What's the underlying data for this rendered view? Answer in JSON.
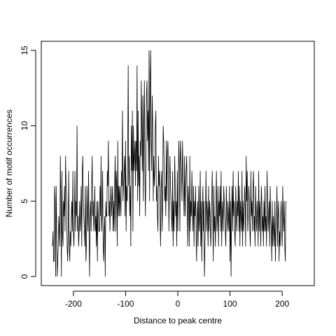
{
  "chart_data": {
    "type": "line",
    "title": "",
    "xlabel": "Distance to peak centre",
    "ylabel": "Number of motif occurrences",
    "xlim": [
      -250,
      250
    ],
    "ylim": [
      0,
      15
    ],
    "xticks": [
      -200,
      -100,
      0,
      100,
      200
    ],
    "yticks": [
      0,
      5,
      10,
      15
    ],
    "x_start": -240,
    "x_step": 1,
    "grid": false,
    "legend": "none",
    "line_color": "#000000",
    "series": [
      {
        "values": [
          2,
          3,
          1,
          1,
          6,
          5,
          0,
          6,
          3,
          0,
          1,
          2,
          4,
          3,
          2,
          8,
          5,
          0,
          7,
          3,
          2,
          5,
          4,
          6,
          3,
          8,
          6,
          5,
          2,
          1,
          3,
          7,
          2,
          1,
          3,
          2,
          4,
          5,
          3,
          7,
          3,
          2,
          4,
          7,
          3,
          5,
          4,
          10,
          3,
          4,
          2,
          3,
          5,
          3,
          4,
          6,
          2,
          7,
          8,
          5,
          4,
          3,
          2,
          6,
          1,
          2,
          6,
          4,
          3,
          7,
          3,
          0,
          4,
          5,
          3,
          6,
          8,
          4,
          5,
          3,
          4,
          6,
          3,
          4,
          2,
          5,
          1,
          5,
          4,
          3,
          3,
          6,
          4,
          8,
          3,
          4,
          7,
          2,
          1,
          3,
          4,
          0,
          5,
          4,
          4,
          7,
          6,
          9,
          4,
          5,
          3,
          5,
          6,
          4,
          5,
          6,
          3,
          5,
          3,
          6,
          8,
          3,
          7,
          6,
          2,
          9,
          4,
          6,
          4,
          6,
          5,
          4,
          7,
          6,
          11,
          5,
          6,
          7,
          8,
          4,
          9,
          3,
          6,
          5,
          8,
          14,
          6,
          8,
          4,
          6,
          2,
          10,
          7,
          11,
          3,
          10,
          7,
          8,
          9,
          6,
          9,
          7,
          14,
          5,
          11,
          6,
          8,
          4,
          9,
          8,
          13,
          10,
          7,
          12,
          5,
          10,
          13,
          7,
          4,
          8,
          12,
          13,
          9,
          11,
          7,
          15,
          5,
          13,
          15,
          9,
          7,
          12,
          10,
          5,
          8,
          6,
          7,
          10,
          11,
          5,
          6,
          4,
          3,
          8,
          6,
          7,
          4,
          2,
          6,
          7,
          3,
          5,
          10,
          9,
          7,
          5,
          6,
          4,
          9,
          5,
          8,
          9,
          7,
          3,
          6,
          8,
          6,
          5,
          4,
          3,
          7,
          2,
          5,
          3,
          8,
          6,
          4,
          5,
          2,
          7,
          3,
          6,
          9,
          7,
          3,
          9,
          8,
          7,
          5,
          9,
          7,
          6,
          4,
          8,
          4,
          6,
          7,
          8,
          5,
          2,
          6,
          5,
          2,
          8,
          3,
          5,
          4,
          7,
          5,
          3,
          6,
          2,
          5,
          4,
          6,
          3,
          1,
          4,
          5,
          2,
          6,
          3,
          4,
          7,
          2,
          5,
          1,
          4,
          6,
          3,
          5,
          0,
          2,
          4,
          7,
          3,
          5,
          4,
          2,
          6,
          3,
          5,
          4,
          2,
          3,
          5,
          7,
          4,
          1,
          6,
          3,
          4,
          2,
          5,
          7,
          3,
          4,
          6,
          2,
          5,
          4,
          6,
          3,
          7,
          2,
          4,
          5,
          3,
          6,
          5,
          4,
          3,
          2,
          6,
          4,
          3,
          5,
          4,
          3,
          6,
          1,
          5,
          0,
          4,
          6,
          3,
          7,
          4,
          5,
          3,
          2,
          6,
          4,
          3,
          5,
          4,
          7,
          3,
          6,
          2,
          5,
          4,
          3,
          7,
          2,
          5,
          3,
          4,
          6,
          5,
          2,
          8,
          5,
          7,
          3,
          4,
          6,
          5,
          3,
          2,
          7,
          4,
          5,
          3,
          6,
          7,
          3,
          4,
          2,
          6,
          4,
          3,
          5,
          4,
          2,
          7,
          3,
          5,
          4,
          2,
          6,
          5,
          3,
          4,
          2,
          5,
          3,
          6,
          3,
          4,
          2,
          7,
          5,
          3,
          4,
          5,
          2,
          6,
          4,
          3,
          1,
          5,
          2,
          4,
          3,
          2,
          5,
          1,
          3,
          4,
          6,
          2,
          4,
          5,
          1,
          3,
          2,
          4,
          5,
          3,
          2,
          6,
          4,
          3,
          5,
          2,
          1,
          5
        ]
      }
    ]
  }
}
